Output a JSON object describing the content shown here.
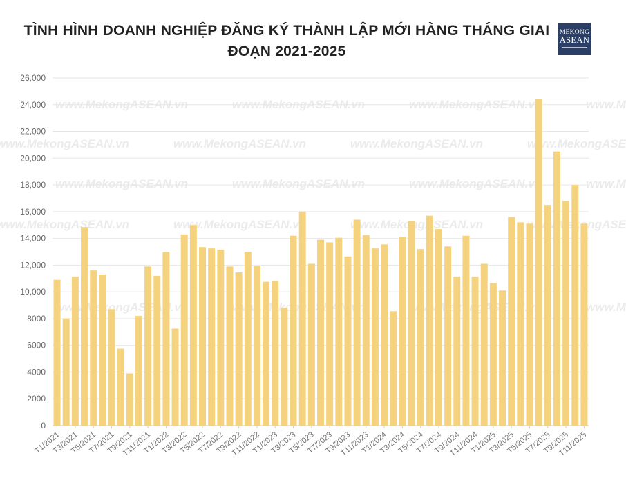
{
  "header": {
    "title": "TÌNH HÌNH DOANH NGHIỆP ĐĂNG KÝ THÀNH LẬP MỚI HÀNG THÁNG GIAI ĐOẠN 2021-2025",
    "logo_line1": "MEKONG",
    "logo_line2": "ASEAN",
    "watermark": "www.MekongASEAN.vn"
  },
  "chart_data": {
    "type": "bar",
    "title": "TÌNH HÌNH DOANH NGHIỆP ĐĂNG KÝ THÀNH LẬP MỚI HÀNG THÁNG GIAI ĐOẠN 2021-2025",
    "xlabel": "",
    "ylabel": "",
    "ylim": [
      0,
      26000
    ],
    "yticks": [
      0,
      2000,
      4000,
      6000,
      8000,
      10000,
      12000,
      14000,
      16000,
      18000,
      20000,
      22000,
      24000,
      26000
    ],
    "ytick_labels": [
      "0",
      "2000",
      "4000",
      "6000",
      "8000",
      "10,000",
      "12,000",
      "14,000",
      "16,000",
      "18,000",
      "20,000",
      "22,000",
      "24,000",
      "26,000"
    ],
    "grid": true,
    "legend": "none",
    "bar_color": "#f5d37e",
    "categories": [
      "T1/2021",
      "T2/2021",
      "T3/2021",
      "T4/2021",
      "T5/2021",
      "T6/2021",
      "T7/2021",
      "T8/2021",
      "T9/2021",
      "T10/2021",
      "T11/2021",
      "T12/2021",
      "T1/2022",
      "T2/2022",
      "T3/2022",
      "T4/2022",
      "T5/2022",
      "T6/2022",
      "T7/2022",
      "T8/2022",
      "T9/2022",
      "T10/2022",
      "T11/2022",
      "T12/2022",
      "T1/2023",
      "T2/2023",
      "T3/2023",
      "T4/2023",
      "T5/2023",
      "T6/2023",
      "T7/2023",
      "T8/2023",
      "T9/2023",
      "T10/2023",
      "T11/2023",
      "T12/2023",
      "T1/2024",
      "T2/2024",
      "T3/2024",
      "T4/2024",
      "T5/2024",
      "T6/2024",
      "T7/2024",
      "T8/2024",
      "T9/2024",
      "T10/2024",
      "T11/2024",
      "T12/2024",
      "T1/2025",
      "T2/2025",
      "T3/2025",
      "T4/2025",
      "T5/2025",
      "T6/2025",
      "T7/2025",
      "T8/2025",
      "T9/2025",
      "T10/2025",
      "T11/2025"
    ],
    "values": [
      10900,
      8000,
      11150,
      14850,
      11600,
      11300,
      8700,
      5750,
      3900,
      8200,
      11900,
      11200,
      13000,
      7250,
      14300,
      15000,
      13350,
      13250,
      13150,
      11900,
      11450,
      13000,
      11950,
      10750,
      10800,
      8800,
      14200,
      16000,
      12100,
      13900,
      13700,
      14050,
      12650,
      15400,
      14250,
      13250,
      13550,
      8550,
      14100,
      15300,
      13200,
      15700,
      14700,
      13400,
      11150,
      14200,
      11150,
      12100,
      10650,
      10100,
      15600,
      15200,
      15100,
      24400,
      16500,
      20500,
      16800,
      18000,
      15100
    ]
  }
}
